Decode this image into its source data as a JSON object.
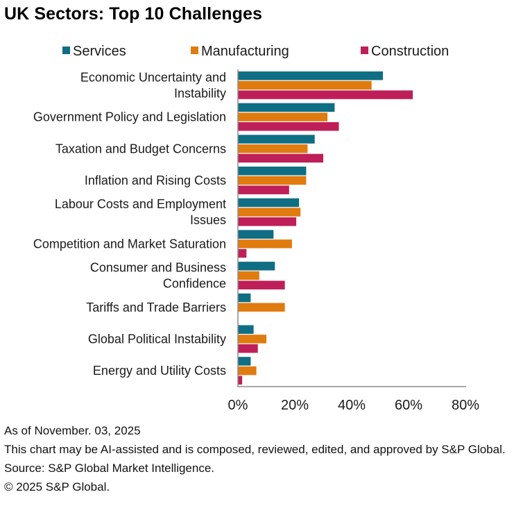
{
  "chart_data": {
    "type": "bar",
    "orientation": "horizontal",
    "title": "UK Sectors: Top 10 Challenges",
    "categories": [
      [
        "Economic Uncertainty and",
        "Instability"
      ],
      [
        "Government Policy and Legislation"
      ],
      [
        "Taxation and Budget Concerns"
      ],
      [
        "Inflation and Rising Costs"
      ],
      [
        "Labour Costs and Employment",
        "Issues"
      ],
      [
        "Competition and Market Saturation"
      ],
      [
        "Consumer and Business",
        "Confidence"
      ],
      [
        "Tariffs and Trade Barriers"
      ],
      [
        "Global Political Instability"
      ],
      [
        "Energy and Utility Costs"
      ]
    ],
    "series": [
      {
        "name": "Services",
        "color": "#0f6e84",
        "values": [
          51,
          34,
          27,
          24,
          21.5,
          12.5,
          13,
          4.5,
          5.5,
          4.5
        ]
      },
      {
        "name": "Manufacturing",
        "color": "#e07b10",
        "values": [
          47,
          31.5,
          24.5,
          24,
          22,
          19,
          7.5,
          16.5,
          10,
          6.5
        ]
      },
      {
        "name": "Construction",
        "color": "#bf1f58",
        "values": [
          61.5,
          35.5,
          30,
          18,
          20.5,
          3,
          16.5,
          0,
          7,
          1.5
        ]
      }
    ],
    "xlim": [
      0,
      80
    ],
    "xticks": [
      "0%",
      "20%",
      "40%",
      "60%",
      "80%"
    ],
    "xlabel": "",
    "ylabel": "",
    "legend_position": "top",
    "grid": false
  },
  "footnotes": {
    "as_of": "As of November. 03, 2025",
    "ai_note": "This chart may be AI-assisted and is composed, reviewed, edited, and approved by S&P Global.",
    "source": "Source: S&P Global Market Intelligence.",
    "copyright": "© 2025 S&P Global."
  }
}
